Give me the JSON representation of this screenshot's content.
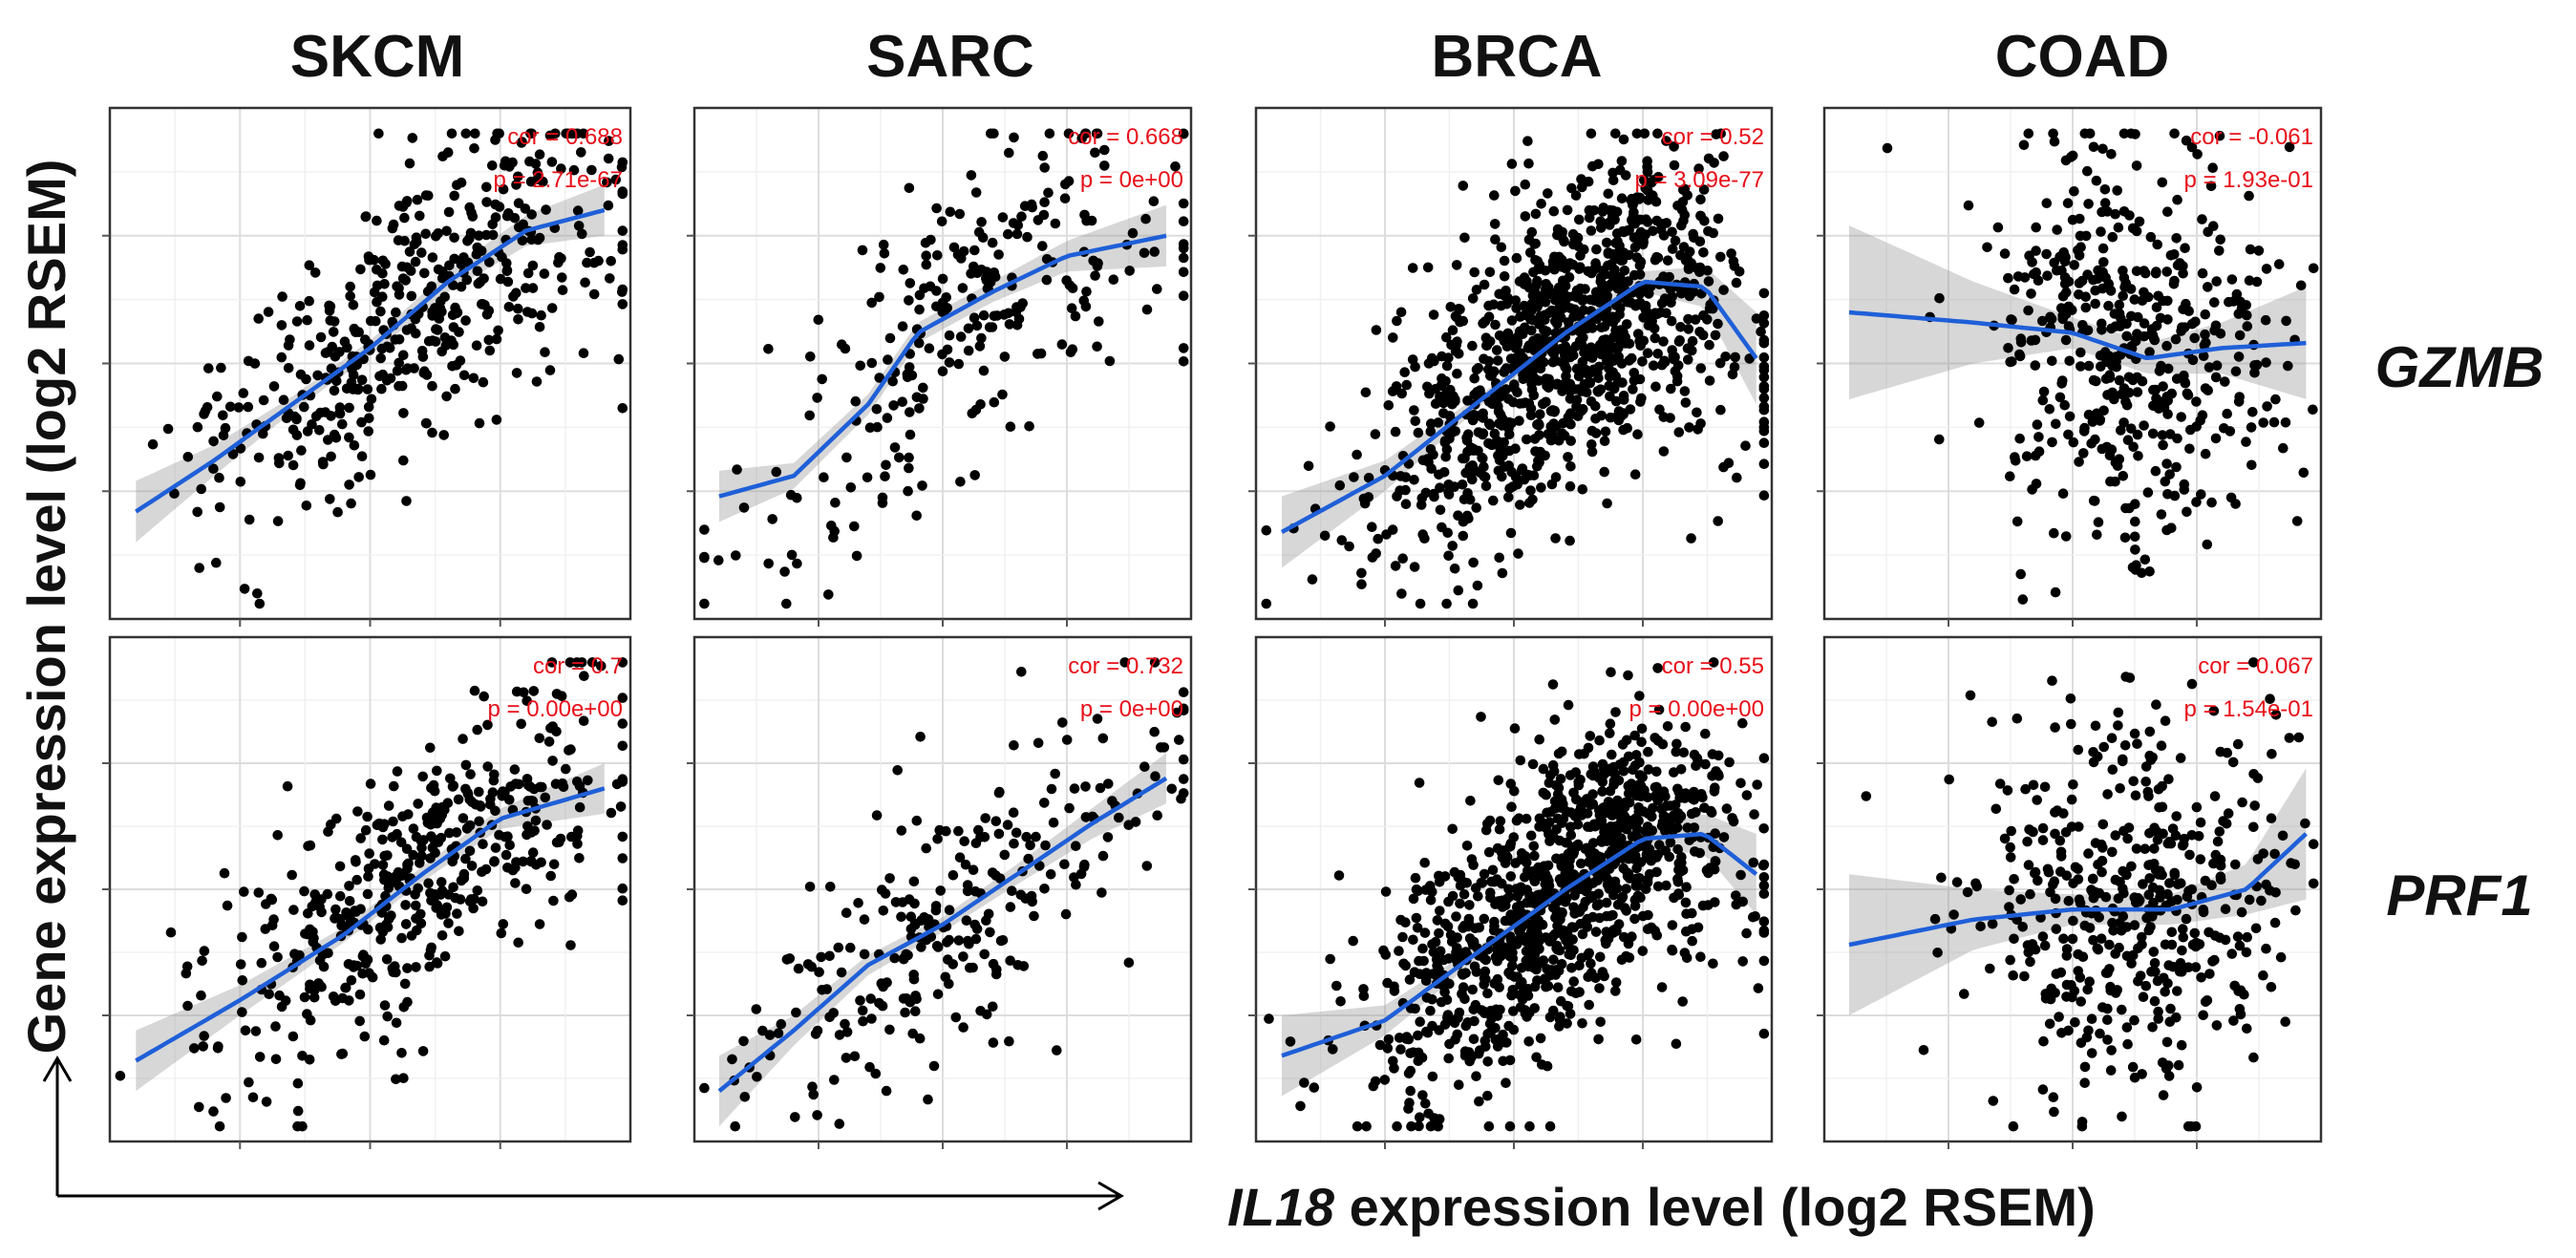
{
  "figure": {
    "columns": [
      "SKCM",
      "SARC",
      "BRCA",
      "COAD"
    ],
    "rows": [
      "GZMB",
      "PRF1"
    ],
    "y_axis_label": "Gene expression level (log2 RSEM)",
    "x_axis_label_gene": "IL18",
    "x_axis_label_rest": " expression level (log2 RSEM)"
  },
  "colors": {
    "points": "#000000",
    "fit_line": "#1f5fd8",
    "confidence_band": "#9a9a9a",
    "stats_text": "#e8101a"
  },
  "chart_data": [
    {
      "type": "scatter",
      "panel": "SKCM-GZMB",
      "cancer": "SKCM",
      "gene": "GZMB",
      "cor_label": "cor = 0.688",
      "p_label": "p = 2.71e-67",
      "n_points": 470,
      "corr": 0.688,
      "seed": 11,
      "x_center": 0.58,
      "x_spread": 0.2,
      "y_noise": 0.13,
      "fit": [
        [
          0.05,
          0.21
        ],
        [
          0.2,
          0.31
        ],
        [
          0.35,
          0.42
        ],
        [
          0.5,
          0.53
        ],
        [
          0.65,
          0.66
        ],
        [
          0.8,
          0.76
        ],
        [
          0.95,
          0.8
        ]
      ],
      "band": [
        0.06,
        0.03,
        0.015,
        0.015,
        0.02,
        0.03,
        0.05
      ]
    },
    {
      "type": "scatter",
      "panel": "SARC-GZMB",
      "cancer": "SARC",
      "gene": "GZMB",
      "cor_label": "cor = 0.668",
      "p_label": "p = 0e+00",
      "n_points": 260,
      "corr": 0.668,
      "seed": 23,
      "x_center": 0.55,
      "x_spread": 0.22,
      "y_noise": 0.14,
      "fit": [
        [
          0.05,
          0.24
        ],
        [
          0.2,
          0.28
        ],
        [
          0.35,
          0.42
        ],
        [
          0.45,
          0.56
        ],
        [
          0.6,
          0.64
        ],
        [
          0.75,
          0.71
        ],
        [
          0.95,
          0.75
        ]
      ],
      "band": [
        0.05,
        0.025,
        0.02,
        0.02,
        0.02,
        0.03,
        0.06
      ]
    },
    {
      "type": "scatter",
      "panel": "BRCA-GZMB",
      "cancer": "BRCA",
      "gene": "GZMB",
      "cor_label": "cor = 0.52",
      "p_label": "p = 3.09e-77",
      "n_points": 1100,
      "corr": 0.52,
      "seed": 37,
      "x_center": 0.6,
      "x_spread": 0.18,
      "y_noise": 0.15,
      "fit": [
        [
          0.05,
          0.17
        ],
        [
          0.25,
          0.28
        ],
        [
          0.45,
          0.44
        ],
        [
          0.6,
          0.56
        ],
        [
          0.75,
          0.66
        ],
        [
          0.87,
          0.65
        ],
        [
          0.97,
          0.51
        ]
      ],
      "band": [
        0.07,
        0.03,
        0.01,
        0.01,
        0.02,
        0.04,
        0.09
      ]
    },
    {
      "type": "scatter",
      "panel": "COAD-GZMB",
      "cancer": "COAD",
      "gene": "GZMB",
      "cor_label": "cor = -0.061",
      "p_label": "p = 1.93e-01",
      "n_points": 460,
      "corr": -0.061,
      "seed": 41,
      "x_center": 0.63,
      "x_spread": 0.15,
      "y_noise": 0.19,
      "fit": [
        [
          0.05,
          0.6
        ],
        [
          0.3,
          0.58
        ],
        [
          0.5,
          0.56
        ],
        [
          0.65,
          0.51
        ],
        [
          0.8,
          0.53
        ],
        [
          0.97,
          0.54
        ]
      ],
      "band": [
        0.17,
        0.08,
        0.03,
        0.03,
        0.05,
        0.11
      ]
    },
    {
      "type": "scatter",
      "panel": "SKCM-PRF1",
      "cancer": "SKCM",
      "gene": "PRF1",
      "cor_label": "cor = 0.7",
      "p_label": "p = 0.00e+00",
      "n_points": 470,
      "corr": 0.7,
      "seed": 53,
      "x_center": 0.58,
      "x_spread": 0.2,
      "y_noise": 0.12,
      "fit": [
        [
          0.05,
          0.16
        ],
        [
          0.25,
          0.28
        ],
        [
          0.45,
          0.41
        ],
        [
          0.6,
          0.53
        ],
        [
          0.75,
          0.64
        ],
        [
          0.95,
          0.7
        ]
      ],
      "band": [
        0.06,
        0.03,
        0.015,
        0.015,
        0.02,
        0.05
      ]
    },
    {
      "type": "scatter",
      "panel": "SARC-PRF1",
      "cancer": "SARC",
      "gene": "PRF1",
      "cor_label": "cor = 0.732",
      "p_label": "p = 0e+00",
      "n_points": 260,
      "corr": 0.732,
      "seed": 67,
      "x_center": 0.55,
      "x_spread": 0.22,
      "y_noise": 0.13,
      "fit": [
        [
          0.05,
          0.1
        ],
        [
          0.2,
          0.22
        ],
        [
          0.35,
          0.35
        ],
        [
          0.5,
          0.43
        ],
        [
          0.65,
          0.53
        ],
        [
          0.8,
          0.63
        ],
        [
          0.95,
          0.72
        ]
      ],
      "band": [
        0.07,
        0.03,
        0.02,
        0.015,
        0.02,
        0.03,
        0.05
      ]
    },
    {
      "type": "scatter",
      "panel": "BRCA-PRF1",
      "cancer": "BRCA",
      "gene": "PRF1",
      "cor_label": "cor = 0.55",
      "p_label": "p = 0.00e+00",
      "n_points": 1100,
      "corr": 0.55,
      "seed": 79,
      "x_center": 0.6,
      "x_spread": 0.18,
      "y_noise": 0.14,
      "fit": [
        [
          0.05,
          0.17
        ],
        [
          0.25,
          0.24
        ],
        [
          0.45,
          0.39
        ],
        [
          0.6,
          0.5
        ],
        [
          0.75,
          0.6
        ],
        [
          0.87,
          0.61
        ],
        [
          0.97,
          0.53
        ]
      ],
      "band": [
        0.08,
        0.03,
        0.01,
        0.01,
        0.02,
        0.04,
        0.08
      ]
    },
    {
      "type": "scatter",
      "panel": "COAD-PRF1",
      "cancer": "COAD",
      "gene": "PRF1",
      "cor_label": "cor = 0.067",
      "p_label": "p = 1.54e-01",
      "n_points": 460,
      "corr": 0.067,
      "seed": 89,
      "x_center": 0.63,
      "x_spread": 0.15,
      "y_noise": 0.19,
      "fit": [
        [
          0.05,
          0.39
        ],
        [
          0.3,
          0.44
        ],
        [
          0.5,
          0.46
        ],
        [
          0.7,
          0.46
        ],
        [
          0.85,
          0.5
        ],
        [
          0.97,
          0.61
        ]
      ],
      "band": [
        0.14,
        0.06,
        0.03,
        0.03,
        0.05,
        0.13
      ]
    }
  ]
}
